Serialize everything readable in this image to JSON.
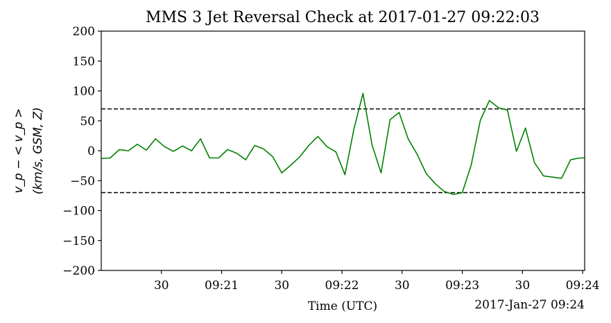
{
  "chart_data": {
    "type": "line",
    "title": "MMS 3 Jet Reversal Check at 2017-01-27 09:22:03",
    "xlabel": "Time (UTC)",
    "xlabel_right": "2017-Jan-27 09:24",
    "ylabel_line1": "v_p − < v_p >",
    "ylabel_line2": "(km/s, GSM, Z)",
    "ylim": [
      -200,
      200
    ],
    "xlim_seconds": [
      0,
      241
    ],
    "yticks": [
      200,
      150,
      100,
      50,
      0,
      -50,
      -100,
      -150,
      -200
    ],
    "ytick_labels": [
      "200",
      "150",
      "100",
      "50",
      "0",
      "−50",
      "−100",
      "−150",
      "−200"
    ],
    "xticks": [
      30,
      60,
      90,
      120,
      150,
      180,
      210,
      240
    ],
    "xtick_labels": [
      "30",
      "09:21",
      "30",
      "09:22",
      "30",
      "09:23",
      "30",
      "09:24"
    ],
    "thresholds": [
      70,
      -70
    ],
    "grid": false,
    "series": [
      {
        "color": "#008000",
        "x": [
          0,
          4.5,
          9,
          13.5,
          18,
          22.5,
          27,
          31.5,
          36,
          40.5,
          45,
          49.5,
          54,
          58.5,
          63,
          67.5,
          72,
          76.5,
          81,
          85.5,
          90,
          94.5,
          99,
          103.5,
          108,
          112.5,
          117,
          121.5,
          126,
          130.5,
          135,
          139.5,
          144,
          148.5,
          153,
          157.5,
          162,
          166.5,
          171,
          175.5,
          180,
          184.5,
          189,
          193.5,
          198,
          202.5,
          207,
          211.5,
          216,
          220.5,
          225,
          229.5,
          234,
          238.5,
          241
        ],
        "y": [
          -13,
          -12,
          2,
          0,
          11,
          1,
          20,
          7,
          -1,
          8,
          0,
          20,
          -12,
          -12,
          2,
          -4,
          -15,
          9,
          3,
          -10,
          -37,
          -24,
          -10,
          9,
          24,
          7,
          -2,
          -40,
          37,
          96,
          10,
          -37,
          52,
          64,
          20,
          -6,
          -38,
          -55,
          -68,
          -73,
          -70,
          -23,
          51,
          84,
          72,
          68,
          -1,
          38,
          -20,
          -42,
          -44,
          -46,
          -15,
          -12,
          -12
        ]
      }
    ]
  }
}
